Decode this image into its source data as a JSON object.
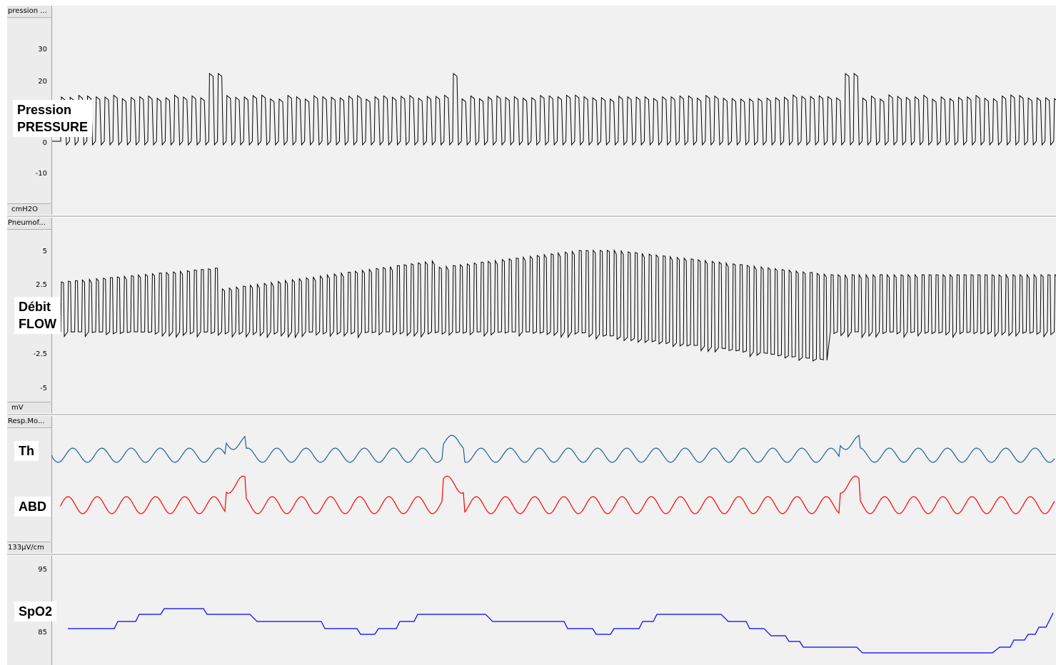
{
  "channels": [
    {
      "name": "pression_channel",
      "header": "pression ...",
      "unit": "cmH2O",
      "ticks": [
        "30",
        "20",
        "0",
        "-10"
      ],
      "label_lines": [
        "Pression",
        "PRESSURE"
      ]
    },
    {
      "name": "flow_channel",
      "header": "Pneumof...",
      "unit": "mV",
      "ticks": [
        "5",
        "2.5",
        "-2.5",
        "-5"
      ],
      "label_lines": [
        "Débit",
        "FLOW"
      ]
    },
    {
      "name": "resp_channel",
      "header": "Resp.Mo...",
      "unit": "133µV/cm",
      "ticks": [],
      "label_lines": [
        "Th",
        "ABD"
      ]
    },
    {
      "name": "spo2_channel",
      "header": "",
      "unit": "",
      "ticks": [
        "95",
        "85"
      ],
      "label_lines": [
        "SpO2"
      ]
    }
  ],
  "colors": {
    "pressure": "#000000",
    "flow": "#000000",
    "thorax": "#1f5fa0",
    "abdomen": "#ff0000",
    "spo2": "#0000ff"
  }
}
